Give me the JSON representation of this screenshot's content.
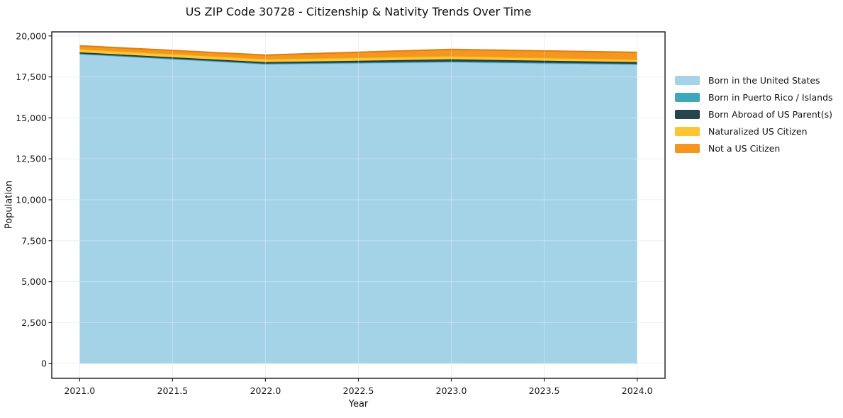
{
  "title": "US ZIP Code 30728 - Citizenship & Nativity Trends Over Time",
  "chart_data": {
    "type": "area",
    "stacked": true,
    "title": "US ZIP Code 30728 - Citizenship & Nativity Trends Over Time",
    "xlabel": "Year",
    "ylabel": "Population",
    "x": [
      2021,
      2022,
      2023,
      2024
    ],
    "series": [
      {
        "name": "Born in the United States",
        "color": "#a4d3e8",
        "edge": "#8ec4dd",
        "values": [
          18900,
          18280,
          18400,
          18260
        ]
      },
      {
        "name": "Born in Puerto Rico / Islands",
        "color": "#3ea7bd",
        "edge": "#2d93a8",
        "values": [
          25,
          35,
          45,
          40
        ]
      },
      {
        "name": "Born Abroad of US Parent(s)",
        "color": "#26454f",
        "edge": "#16303a",
        "values": [
          75,
          85,
          130,
          105
        ]
      },
      {
        "name": "Naturalized US Citizen",
        "color": "#fdc433",
        "edge": "#e8a90e",
        "values": [
          215,
          205,
          215,
          175
        ]
      },
      {
        "name": "Not a US Citizen",
        "color": "#f6951f",
        "edge": "#e07e0a",
        "values": [
          185,
          230,
          390,
          420
        ]
      }
    ],
    "xticks": [
      2021.0,
      2021.5,
      2022.0,
      2022.5,
      2023.0,
      2023.5,
      2024.0
    ],
    "xtick_labels": [
      "2021.0",
      "2021.5",
      "2022.0",
      "2022.5",
      "2023.0",
      "2023.5",
      "2024.0"
    ],
    "yticks": [
      0,
      2500,
      5000,
      7500,
      10000,
      12500,
      15000,
      17500,
      20000
    ],
    "ytick_labels": [
      "0",
      "2,500",
      "5,000",
      "7,500",
      "10,000",
      "12,500",
      "15,000",
      "17,500",
      "20,000"
    ],
    "xlim": [
      2020.85,
      2024.15
    ],
    "ylim": [
      -900,
      20250
    ],
    "grid": true,
    "legend_position": "right-outside",
    "colors": {
      "grid": "#ebebeb",
      "frame": "#1a1a1a",
      "tick_text": "#191919",
      "background": "#ffffff"
    }
  }
}
